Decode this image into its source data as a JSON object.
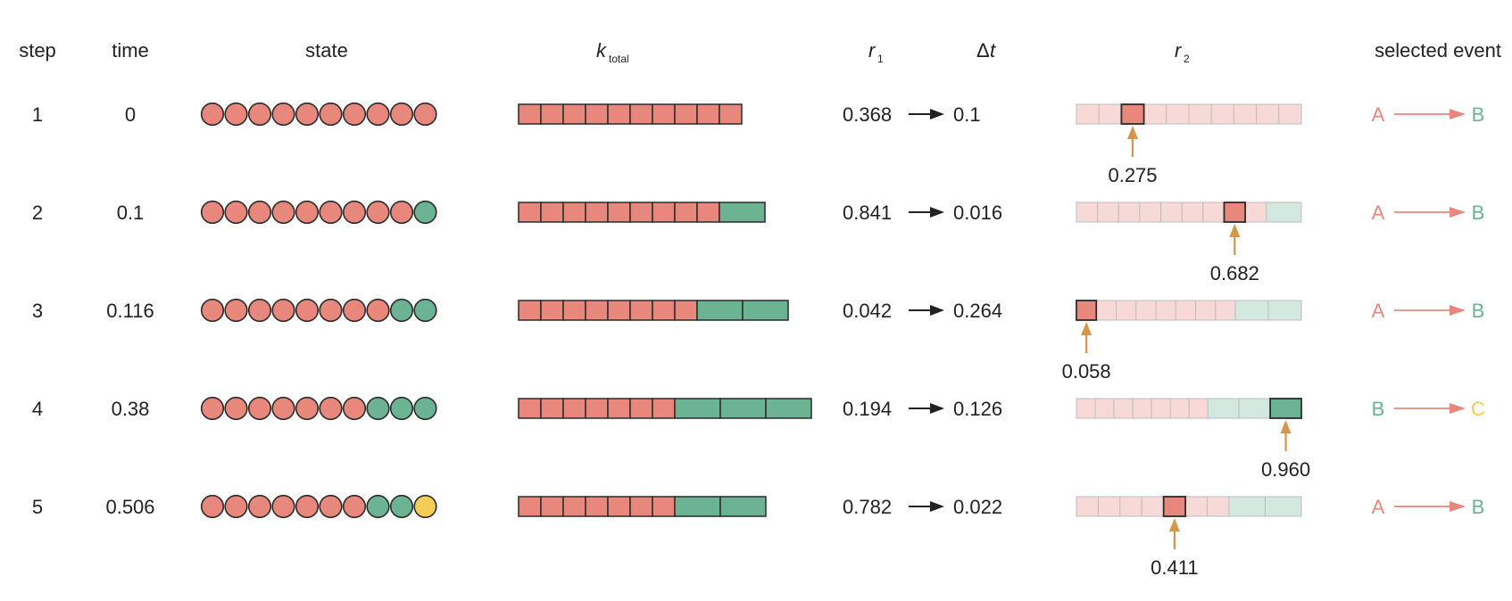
{
  "headers": {
    "step": "step",
    "time": "time",
    "state": "state",
    "k_total": {
      "main": "k",
      "sub": "total"
    },
    "r1": {
      "main": "r",
      "sub": "1"
    },
    "dt": {
      "delta": "Δ",
      "var": "t"
    },
    "r2": {
      "main": "r",
      "sub": "2"
    },
    "event": "selected event"
  },
  "colors": {
    "A": "#e8877c",
    "B": "#6bb393",
    "C": "#f5cc55",
    "A_light": "#f7dad7",
    "B_light": "#d3e8df",
    "arrow": "#d6954a",
    "outline": "#2b2b2b"
  },
  "rows": [
    {
      "step": "1",
      "time": "0",
      "state": [
        "A",
        "A",
        "A",
        "A",
        "A",
        "A",
        "A",
        "A",
        "A",
        "A"
      ],
      "k_blocks": [
        {
          "species": "A",
          "count": 10
        }
      ],
      "r1": "0.368",
      "dt": "0.1",
      "r2": "0.275",
      "r2_value": 0.275,
      "event": {
        "from": "A",
        "to": "B"
      }
    },
    {
      "step": "2",
      "time": "0.1",
      "state": [
        "A",
        "A",
        "A",
        "A",
        "A",
        "A",
        "A",
        "A",
        "A",
        "B"
      ],
      "k_blocks": [
        {
          "species": "A",
          "count": 9
        },
        {
          "species": "B",
          "count": 1
        }
      ],
      "r1": "0.841",
      "dt": "0.016",
      "r2": "0.682",
      "r2_value": 0.682,
      "event": {
        "from": "A",
        "to": "B"
      }
    },
    {
      "step": "3",
      "time": "0.116",
      "state": [
        "A",
        "A",
        "A",
        "A",
        "A",
        "A",
        "A",
        "A",
        "B",
        "B"
      ],
      "k_blocks": [
        {
          "species": "A",
          "count": 8
        },
        {
          "species": "B",
          "count": 2
        }
      ],
      "r1": "0.042",
      "dt": "0.264",
      "r2": "0.058",
      "r2_value": 0.058,
      "event": {
        "from": "A",
        "to": "B"
      }
    },
    {
      "step": "4",
      "time": "0.38",
      "state": [
        "A",
        "A",
        "A",
        "A",
        "A",
        "A",
        "A",
        "B",
        "B",
        "B"
      ],
      "k_blocks": [
        {
          "species": "A",
          "count": 7
        },
        {
          "species": "B",
          "count": 3
        }
      ],
      "r1": "0.194",
      "dt": "0.126",
      "r2": "0.960",
      "r2_value": 0.96,
      "event": {
        "from": "B",
        "to": "C"
      }
    },
    {
      "step": "5",
      "time": "0.506",
      "state": [
        "A",
        "A",
        "A",
        "A",
        "A",
        "A",
        "A",
        "B",
        "B",
        "C"
      ],
      "k_blocks": [
        {
          "species": "A",
          "count": 7
        },
        {
          "species": "B",
          "count": 2
        }
      ],
      "r1": "0.782",
      "dt": "0.022",
      "r2": "0.411",
      "r2_value": 0.411,
      "event": {
        "from": "A",
        "to": "B"
      }
    }
  ]
}
